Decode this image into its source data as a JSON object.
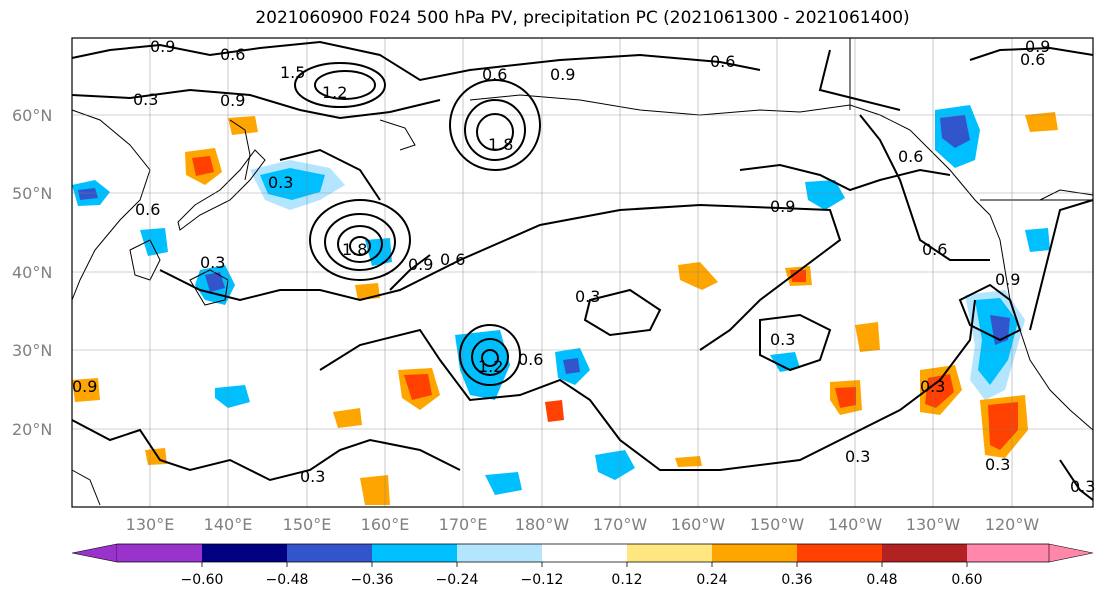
{
  "title": "2021060900 F024 500 hPa PV, precipitation PC (2021061300 - 2021061400)",
  "lat_labels": [
    "60°N",
    "50°N",
    "40°N",
    "30°N",
    "20°N"
  ],
  "lon_labels": [
    "130°E",
    "140°E",
    "150°E",
    "160°E",
    "170°E",
    "180°W",
    "170°W",
    "160°W",
    "150°W",
    "140°W",
    "130°W",
    "120°W"
  ],
  "colorbar": {
    "ticks": [
      "−0.60",
      "−0.48",
      "−0.36",
      "−0.24",
      "−0.12",
      "0.12",
      "0.24",
      "0.36",
      "0.48",
      "0.60"
    ],
    "colors": [
      "#9933cc",
      "#000080",
      "#3355cc",
      "#00bfff",
      "#b3e5ff",
      "#ffffff",
      "#ffe680",
      "#ffa500",
      "#ff4000",
      "#b22222",
      "#ff88aa"
    ]
  },
  "contour_labels": [
    "0.9",
    "0.6",
    "1.5",
    "0.3",
    "1.2",
    "0.9",
    "0.9",
    "0.6",
    "1.8",
    "0.3",
    "0.6",
    "1.8",
    "0.6",
    "0.9",
    "0.6",
    "0.3",
    "0.3",
    "0.6",
    "1.2",
    "0.9",
    "0.3",
    "0.6",
    "0.6",
    "0.9",
    "0.9",
    "0.3",
    "0.3",
    "0.3",
    "0.3",
    "0.3",
    "0.6",
    "0.9"
  ],
  "precip_colors": {
    "neg_light": "#b3e5ff",
    "neg_mid": "#00bfff",
    "neg_dark": "#3355cc",
    "pos_light": "#ffe680",
    "pos_mid": "#ffa500",
    "pos_dark": "#ff4000"
  }
}
